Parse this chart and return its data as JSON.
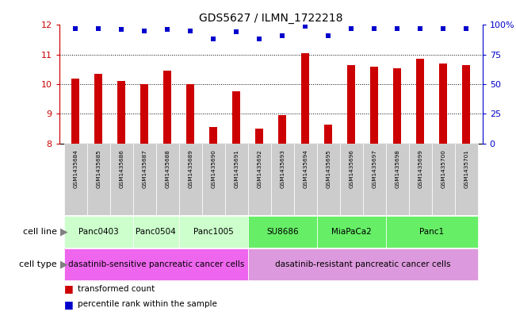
{
  "title": "GDS5627 / ILMN_1722218",
  "samples": [
    "GSM1435684",
    "GSM1435685",
    "GSM1435686",
    "GSM1435687",
    "GSM1435688",
    "GSM1435689",
    "GSM1435690",
    "GSM1435691",
    "GSM1435692",
    "GSM1435693",
    "GSM1435694",
    "GSM1435695",
    "GSM1435696",
    "GSM1435697",
    "GSM1435698",
    "GSM1435699",
    "GSM1435700",
    "GSM1435701"
  ],
  "bar_values": [
    10.2,
    10.35,
    10.1,
    10.0,
    10.45,
    10.0,
    8.55,
    9.75,
    8.5,
    8.95,
    11.05,
    8.65,
    10.65,
    10.6,
    10.55,
    10.85,
    10.7,
    10.65
  ],
  "percentile_values": [
    97,
    97,
    96,
    95,
    96,
    95,
    88,
    94,
    88,
    91,
    99,
    91,
    97,
    97,
    97,
    97,
    97,
    97
  ],
  "ylim_left": [
    8,
    12
  ],
  "ylim_right": [
    0,
    100
  ],
  "yticks_left": [
    8,
    9,
    10,
    11,
    12
  ],
  "yticks_right": [
    0,
    25,
    50,
    75,
    100
  ],
  "bar_color": "#cc0000",
  "dot_color": "#0000cc",
  "cell_lines": [
    {
      "label": "Panc0403",
      "start": 0,
      "end": 2,
      "color": "#ccffcc"
    },
    {
      "label": "Panc0504",
      "start": 3,
      "end": 4,
      "color": "#ccffcc"
    },
    {
      "label": "Panc1005",
      "start": 5,
      "end": 7,
      "color": "#ccffcc"
    },
    {
      "label": "SU8686",
      "start": 8,
      "end": 10,
      "color": "#66ee66"
    },
    {
      "label": "MiaPaCa2",
      "start": 11,
      "end": 13,
      "color": "#66ee66"
    },
    {
      "label": "Panc1",
      "start": 14,
      "end": 17,
      "color": "#66ee66"
    }
  ],
  "cell_line_spans": [
    {
      "label": "Panc0403",
      "start": 0,
      "end": 3,
      "color": "#ccffcc"
    },
    {
      "label": "Panc0504",
      "start": 3,
      "end": 5,
      "color": "#ccffcc"
    },
    {
      "label": "Panc1005",
      "start": 5,
      "end": 8,
      "color": "#ccffcc"
    },
    {
      "label": "SU8686",
      "start": 8,
      "end": 11,
      "color": "#66ee66"
    },
    {
      "label": "MiaPaCa2",
      "start": 11,
      "end": 14,
      "color": "#66ee66"
    },
    {
      "label": "Panc1",
      "start": 14,
      "end": 18,
      "color": "#66ee66"
    }
  ],
  "cell_type_spans": [
    {
      "label": "dasatinib-sensitive pancreatic cancer cells",
      "start": 0,
      "end": 8,
      "color": "#ee66ee"
    },
    {
      "label": "dasatinib-resistant pancreatic cancer cells",
      "start": 8,
      "end": 18,
      "color": "#dd99dd"
    }
  ],
  "sample_area_color": "#cccccc",
  "legend_bar_label": "transformed count",
  "legend_dot_label": "percentile rank within the sample",
  "cell_line_label": "cell line",
  "cell_type_label": "cell type",
  "background_color": "#ffffff",
  "tick_color_left": "#cc0000",
  "tick_color_right": "#0000cc"
}
